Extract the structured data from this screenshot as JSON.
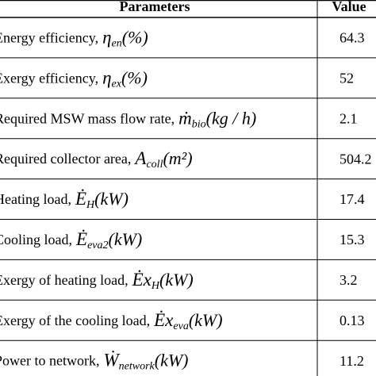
{
  "table": {
    "header": [
      "Parameters",
      "Value"
    ],
    "rows": [
      {
        "label": "Energy efficiency,",
        "symbol": "η",
        "sub": "en",
        "unit": "(%)",
        "value": 64.3
      },
      {
        "label": "Exergy efficiency,",
        "symbol": "η",
        "sub": "ex",
        "unit": "(%)",
        "value": 52
      },
      {
        "label": "Required MSW mass flow rate,",
        "symbol": "ṁ",
        "sub": "bio",
        "unit": "(kg / h)",
        "value": 2.1
      },
      {
        "label": "Required collector area,",
        "symbol": "A",
        "sub": "coll",
        "unit": "(m²)",
        "value": 504.2
      },
      {
        "label": "Heating load,",
        "symbol": "Ė",
        "sub": "H",
        "unit": "(kW)",
        "value": 17.4
      },
      {
        "label": "Cooling load,",
        "symbol": "Ė",
        "sub": "eva2",
        "unit": "(kW)",
        "value": 15.3
      },
      {
        "label": "Exergy of heating load,",
        "symbol": "Ėx",
        "sub": "H",
        "unit": "(kW)",
        "value": 3.2
      },
      {
        "label": "Exergy of the cooling load,",
        "symbol": "Ėx",
        "sub": "eva",
        "unit": "(kW)",
        "value": 0.13
      },
      {
        "label": "Power to network,",
        "symbol": "Ẇ",
        "sub": "network",
        "unit": "(kW)",
        "value": 11.2
      }
    ]
  }
}
